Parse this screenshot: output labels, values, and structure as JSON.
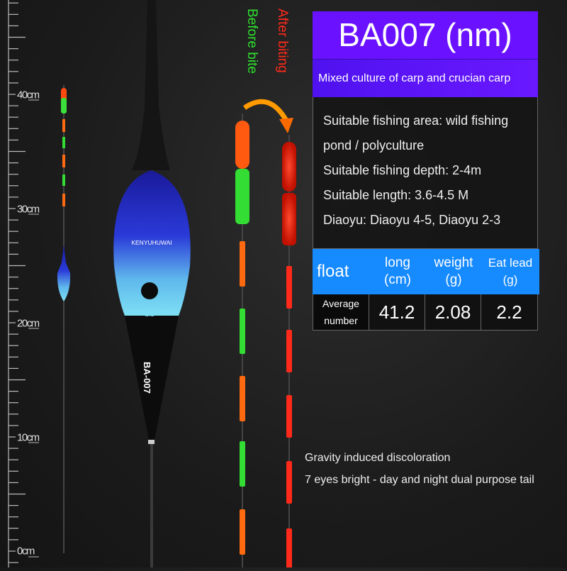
{
  "ruler": {
    "labels": [
      "40cm",
      "30cm",
      "20cm",
      "10cm",
      "0cm"
    ],
    "values_cm": [
      40,
      30,
      20,
      10,
      0
    ]
  },
  "float_body": {
    "brand_text": "KENYUHUWAI",
    "model_text": "BA-007",
    "badge_text": "2.1"
  },
  "labels": {
    "before": "Before bite",
    "after": "After biting"
  },
  "colors": {
    "before_label": "#2ee02e",
    "after_label": "#ff2a1a",
    "title_bg": "#6a12ff",
    "header_bg": "#168aff",
    "light_red": "#ff3322",
    "light_green": "#33dd33",
    "light_orange": "#ff6a10"
  },
  "spec": {
    "title": "BA007 (nm)",
    "subtitle": "Mixed culture of carp and crucian carp",
    "lines": [
      "Suitable fishing area: wild fishing",
      "pond / polyculture",
      "Suitable fishing depth: 2-4m",
      "Suitable length: 3.6-4.5 M",
      "Diaoyu: Diaoyu 4-5, Diaoyu 2-3"
    ],
    "table": {
      "headers": [
        {
          "main": "float",
          "unit": ""
        },
        {
          "main": "long",
          "unit": "(cm)"
        },
        {
          "main": "weight",
          "unit": "(g)"
        },
        {
          "main": "Eat lead",
          "unit": "(g)"
        }
      ],
      "row_label_1": "Average",
      "row_label_2": "number",
      "values": [
        "41.2",
        "2.08",
        "2.2"
      ]
    }
  },
  "footer": [
    "Gravity induced discoloration",
    "7 eyes bright - day and night dual purpose tail"
  ]
}
